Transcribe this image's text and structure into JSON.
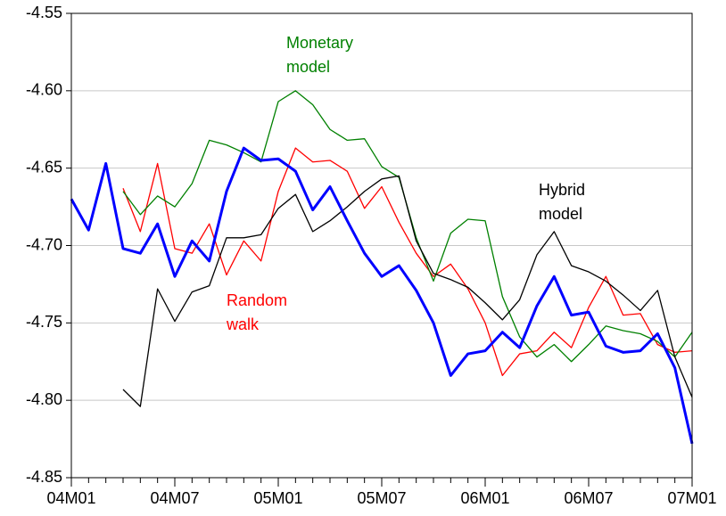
{
  "chart_data": {
    "type": "line",
    "categories": [
      "04M01",
      null,
      null,
      null,
      null,
      null,
      "04M07",
      null,
      null,
      null,
      null,
      null,
      "05M01",
      null,
      null,
      null,
      null,
      null,
      "05M07",
      null,
      null,
      null,
      null,
      null,
      "06M01",
      null,
      null,
      null,
      null,
      null,
      "06M07",
      null,
      null,
      null,
      null,
      null,
      "07M01"
    ],
    "ylim": [
      -4.85,
      -4.55
    ],
    "yticks": [
      -4.85,
      {
        "value": -4.8,
        "label": "-4.80"
      },
      -4.75,
      {
        "value": -4.7,
        "label": "-4.70"
      },
      -4.65,
      {
        "value": -4.6,
        "label": "-4.60"
      },
      -4.55
    ],
    "grid": true,
    "series": [
      {
        "color": "#0000ff",
        "values": [
          -4.67,
          -4.69,
          -4.647,
          -4.702,
          -4.705,
          -4.686,
          -4.72,
          -4.697,
          -4.71,
          -4.665,
          -4.637,
          -4.645,
          -4.644,
          -4.652,
          -4.677,
          -4.662,
          -4.684,
          -4.705,
          -4.72,
          -4.713,
          -4.729,
          -4.75,
          -4.784,
          -4.77,
          -4.768,
          -4.756,
          -4.766,
          -4.739,
          -4.72,
          -4.745,
          -4.743,
          -4.765,
          -4.769,
          -4.768,
          -4.757,
          -4.779,
          -4.828
        ]
      },
      {
        "color": "#ff0000",
        "values": [
          null,
          null,
          null,
          -4.663,
          -4.691,
          -4.647,
          -4.702,
          -4.705,
          -4.686,
          -4.719,
          -4.697,
          -4.71,
          -4.665,
          -4.637,
          -4.646,
          -4.645,
          -4.652,
          -4.676,
          -4.662,
          -4.685,
          -4.705,
          -4.72,
          -4.712,
          -4.728,
          -4.75,
          -4.784,
          -4.77,
          -4.768,
          -4.756,
          -4.766,
          -4.74,
          -4.72,
          -4.745,
          -4.744,
          -4.764,
          -4.769,
          -4.768
        ]
      },
      {
        "color": "#008000",
        "values": [
          null,
          null,
          null,
          -4.665,
          -4.68,
          -4.668,
          -4.675,
          -4.66,
          -4.632,
          -4.635,
          -4.64,
          -4.646,
          -4.607,
          -4.6,
          -4.609,
          -4.625,
          -4.632,
          -4.631,
          -4.649,
          -4.656,
          -4.695,
          -4.723,
          -4.692,
          -4.683,
          -4.684,
          -4.733,
          -4.759,
          -4.772,
          -4.764,
          -4.775,
          -4.764,
          -4.752,
          -4.755,
          -4.757,
          -4.762,
          -4.772,
          -4.756
        ]
      },
      {
        "color": "#000000",
        "values": [
          null,
          null,
          null,
          -4.793,
          -4.804,
          -4.728,
          -4.749,
          -4.73,
          -4.726,
          -4.695,
          -4.695,
          -4.693,
          -4.676,
          -4.667,
          -4.691,
          -4.684,
          -4.675,
          -4.665,
          -4.657,
          -4.655,
          -4.697,
          -4.718,
          -4.722,
          -4.727,
          -4.737,
          -4.748,
          -4.735,
          -4.706,
          -4.691,
          -4.713,
          -4.717,
          -4.723,
          -4.732,
          -4.742,
          -4.729,
          -4.772,
          -4.798
        ]
      }
    ],
    "annotations": [
      {
        "lines": [
          "Monetary",
          "model"
        ],
        "color": "#008000"
      },
      {
        "lines": [
          "Hybrid",
          "model"
        ],
        "color": "#000000"
      },
      {
        "lines": [
          "Random",
          "walk"
        ],
        "color": "#ff0000"
      }
    ]
  }
}
